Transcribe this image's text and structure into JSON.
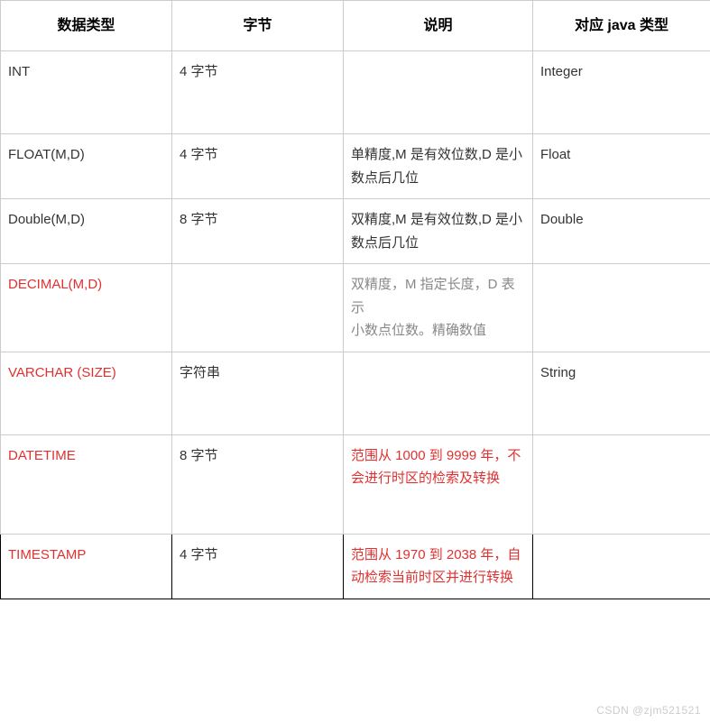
{
  "table": {
    "columns": [
      "数据类型",
      "字节",
      "说明",
      "对应 java 类型"
    ],
    "rows": [
      {
        "type": "INT",
        "bytes": "4 字节",
        "desc": "",
        "java": "Integer",
        "typeClass": "",
        "descClass": "",
        "cellClass": "tall"
      },
      {
        "type": "FLOAT(M,D)",
        "bytes": "4 字节",
        "desc": "单精度,M 是有效位数,D 是小数点后几位",
        "java": "Float",
        "typeClass": "",
        "descClass": "",
        "cellClass": ""
      },
      {
        "type": "Double(M,D)",
        "bytes": "8 字节",
        "desc": "双精度,M 是有效位数,D 是小数点后几位",
        "java": "Double",
        "typeClass": "",
        "descClass": "",
        "cellClass": ""
      },
      {
        "type": "DECIMAL(M,D)",
        "bytes": "",
        "desc": "双精度，M 指定长度，D 表示\n小数点位数。精确数值",
        "java": "",
        "typeClass": "red",
        "descClass": "gray",
        "cellClass": ""
      },
      {
        "type": "VARCHAR (SIZE)",
        "bytes": "字符串",
        "desc": "",
        "java": "String",
        "typeClass": "red",
        "descClass": "",
        "cellClass": "tall"
      },
      {
        "type": "DATETIME",
        "bytes": "8 字节",
        "desc": "范围从 1000 到 9999 年，不会进行时区的检索及转换",
        "java": "",
        "typeClass": "red",
        "descClass": "red",
        "cellClass": "xtall"
      },
      {
        "type": "TIMESTAMP",
        "bytes": "4 字节",
        "desc": "范围从 1970 到 2038 年，自动检索当前时区并进行转换",
        "java": "",
        "typeClass": "red",
        "descClass": "red",
        "cellClass": "",
        "rowClass": "last"
      }
    ]
  },
  "watermark": "CSDN @zjm521521"
}
